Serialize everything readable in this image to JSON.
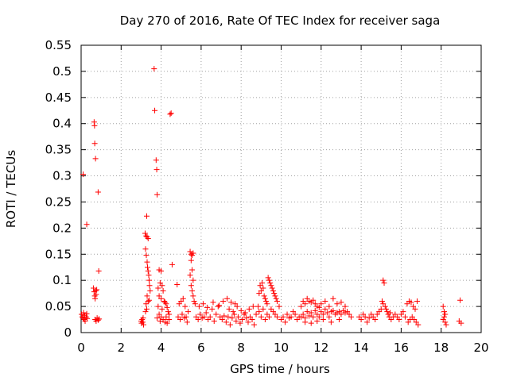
{
  "chart_data": {
    "type": "scatter",
    "title": "Day 270 of 2016, Rate Of TEC Index for receiver saga",
    "xlabel": "GPS time / hours",
    "ylabel": "ROTI / TECUs",
    "xlim": [
      0,
      20
    ],
    "ylim": [
      0,
      0.55
    ],
    "grid": true,
    "xticks": [
      "0",
      "2",
      "4",
      "6",
      "8",
      "10",
      "12",
      "14",
      "16",
      "18",
      "20"
    ],
    "yticks": [
      "0",
      "0.05",
      "0.1",
      "0.15",
      "0.2",
      "0.25",
      "0.3",
      "0.35",
      "0.4",
      "0.45",
      "0.5",
      "0.55"
    ],
    "marker": "plus",
    "color": "#ff0000",
    "series": [
      {
        "name": "ROTI",
        "points": [
          [
            0.02,
            0.035
          ],
          [
            0.05,
            0.03
          ],
          [
            0.1,
            0.028
          ],
          [
            0.12,
            0.038
          ],
          [
            0.15,
            0.025
          ],
          [
            0.18,
            0.033
          ],
          [
            0.2,
            0.022
          ],
          [
            0.25,
            0.03
          ],
          [
            0.28,
            0.036
          ],
          [
            0.3,
            0.027
          ],
          [
            0.1,
            0.303
          ],
          [
            0.28,
            0.207
          ],
          [
            0.65,
            0.403
          ],
          [
            0.67,
            0.396
          ],
          [
            0.68,
            0.362
          ],
          [
            0.72,
            0.333
          ],
          [
            0.85,
            0.269
          ],
          [
            0.88,
            0.118
          ],
          [
            0.62,
            0.085
          ],
          [
            0.65,
            0.078
          ],
          [
            0.68,
            0.07
          ],
          [
            0.7,
            0.065
          ],
          [
            0.73,
            0.08
          ],
          [
            0.75,
            0.073
          ],
          [
            0.78,
            0.082
          ],
          [
            0.7,
            0.025
          ],
          [
            0.75,
            0.022
          ],
          [
            0.8,
            0.028
          ],
          [
            0.85,
            0.024
          ],
          [
            0.9,
            0.026
          ],
          [
            3.0,
            0.022
          ],
          [
            3.02,
            0.018
          ],
          [
            3.05,
            0.025
          ],
          [
            3.08,
            0.02
          ],
          [
            3.1,
            0.028
          ],
          [
            3.12,
            0.015
          ],
          [
            3.2,
            0.19
          ],
          [
            3.25,
            0.185
          ],
          [
            3.3,
            0.183
          ],
          [
            3.35,
            0.18
          ],
          [
            3.28,
            0.223
          ],
          [
            3.22,
            0.16
          ],
          [
            3.26,
            0.148
          ],
          [
            3.3,
            0.135
          ],
          [
            3.32,
            0.125
          ],
          [
            3.35,
            0.118
          ],
          [
            3.38,
            0.11
          ],
          [
            3.4,
            0.1
          ],
          [
            3.42,
            0.09
          ],
          [
            3.45,
            0.08
          ],
          [
            3.3,
            0.07
          ],
          [
            3.35,
            0.06
          ],
          [
            3.25,
            0.055
          ],
          [
            3.4,
            0.062
          ],
          [
            3.28,
            0.045
          ],
          [
            3.22,
            0.04
          ],
          [
            3.65,
            0.505
          ],
          [
            3.68,
            0.425
          ],
          [
            3.75,
            0.33
          ],
          [
            3.78,
            0.312
          ],
          [
            3.8,
            0.264
          ],
          [
            3.9,
            0.12
          ],
          [
            4.0,
            0.118
          ],
          [
            3.95,
            0.095
          ],
          [
            4.05,
            0.09
          ],
          [
            3.85,
            0.085
          ],
          [
            4.1,
            0.08
          ],
          [
            3.9,
            0.07
          ],
          [
            4.0,
            0.065
          ],
          [
            4.15,
            0.06
          ],
          [
            4.2,
            0.058
          ],
          [
            4.25,
            0.055
          ],
          [
            3.85,
            0.05
          ],
          [
            4.05,
            0.045
          ],
          [
            4.3,
            0.048
          ],
          [
            4.35,
            0.04
          ],
          [
            3.9,
            0.035
          ],
          [
            4.0,
            0.03
          ],
          [
            4.1,
            0.025
          ],
          [
            4.2,
            0.02
          ],
          [
            4.3,
            0.018
          ],
          [
            3.8,
            0.028
          ],
          [
            3.95,
            0.022
          ],
          [
            4.25,
            0.03
          ],
          [
            4.4,
            0.035
          ],
          [
            4.4,
            0.025
          ],
          [
            4.45,
            0.418
          ],
          [
            4.5,
            0.42
          ],
          [
            4.55,
            0.13
          ],
          [
            4.8,
            0.092
          ],
          [
            4.9,
            0.055
          ],
          [
            5.0,
            0.06
          ],
          [
            5.1,
            0.065
          ],
          [
            5.2,
            0.05
          ],
          [
            4.85,
            0.03
          ],
          [
            4.95,
            0.025
          ],
          [
            5.05,
            0.035
          ],
          [
            5.15,
            0.028
          ],
          [
            5.25,
            0.03
          ],
          [
            5.3,
            0.02
          ],
          [
            5.35,
            0.04
          ],
          [
            5.45,
            0.155
          ],
          [
            5.5,
            0.15
          ],
          [
            5.55,
            0.148
          ],
          [
            5.6,
            0.152
          ],
          [
            5.5,
            0.138
          ],
          [
            5.55,
            0.12
          ],
          [
            5.45,
            0.11
          ],
          [
            5.6,
            0.1
          ],
          [
            5.5,
            0.09
          ],
          [
            5.55,
            0.08
          ],
          [
            5.6,
            0.07
          ],
          [
            5.65,
            0.06
          ],
          [
            5.7,
            0.055
          ],
          [
            5.75,
            0.03
          ],
          [
            5.85,
            0.025
          ],
          [
            5.95,
            0.035
          ],
          [
            6.05,
            0.028
          ],
          [
            6.15,
            0.03
          ],
          [
            6.25,
            0.038
          ],
          [
            6.35,
            0.025
          ],
          [
            6.45,
            0.03
          ],
          [
            6.55,
            0.045
          ],
          [
            6.65,
            0.022
          ],
          [
            6.75,
            0.035
          ],
          [
            6.85,
            0.05
          ],
          [
            6.95,
            0.03
          ],
          [
            7.05,
            0.025
          ],
          [
            7.15,
            0.032
          ],
          [
            5.9,
            0.05
          ],
          [
            6.1,
            0.055
          ],
          [
            6.3,
            0.048
          ],
          [
            6.6,
            0.058
          ],
          [
            6.9,
            0.052
          ],
          [
            7.1,
            0.06
          ],
          [
            7.3,
            0.065
          ],
          [
            7.5,
            0.058
          ],
          [
            7.7,
            0.055
          ],
          [
            7.25,
            0.02
          ],
          [
            7.35,
            0.03
          ],
          [
            7.45,
            0.015
          ],
          [
            7.55,
            0.028
          ],
          [
            7.65,
            0.035
          ],
          [
            7.75,
            0.022
          ],
          [
            7.85,
            0.03
          ],
          [
            7.95,
            0.018
          ],
          [
            8.05,
            0.025
          ],
          [
            8.15,
            0.035
          ],
          [
            8.25,
            0.028
          ],
          [
            8.35,
            0.02
          ],
          [
            8.45,
            0.03
          ],
          [
            8.55,
            0.025
          ],
          [
            8.65,
            0.015
          ],
          [
            7.4,
            0.045
          ],
          [
            7.6,
            0.04
          ],
          [
            7.8,
            0.05
          ],
          [
            8.0,
            0.042
          ],
          [
            8.2,
            0.038
          ],
          [
            8.4,
            0.045
          ],
          [
            8.6,
            0.05
          ],
          [
            8.75,
            0.035
          ],
          [
            8.85,
            0.05
          ],
          [
            8.9,
            0.075
          ],
          [
            8.95,
            0.09
          ],
          [
            9.0,
            0.08
          ],
          [
            9.05,
            0.095
          ],
          [
            9.1,
            0.085
          ],
          [
            9.15,
            0.07
          ],
          [
            9.2,
            0.065
          ],
          [
            9.25,
            0.06
          ],
          [
            9.3,
            0.055
          ],
          [
            9.35,
            0.105
          ],
          [
            9.4,
            0.1
          ],
          [
            9.45,
            0.095
          ],
          [
            9.5,
            0.09
          ],
          [
            9.55,
            0.085
          ],
          [
            9.6,
            0.08
          ],
          [
            9.65,
            0.075
          ],
          [
            9.7,
            0.07
          ],
          [
            9.75,
            0.065
          ],
          [
            9.8,
            0.06
          ],
          [
            8.9,
            0.04
          ],
          [
            9.0,
            0.03
          ],
          [
            9.1,
            0.045
          ],
          [
            9.2,
            0.025
          ],
          [
            9.3,
            0.035
          ],
          [
            9.4,
            0.03
          ],
          [
            9.5,
            0.045
          ],
          [
            9.6,
            0.04
          ],
          [
            9.7,
            0.035
          ],
          [
            9.8,
            0.03
          ],
          [
            9.9,
            0.05
          ],
          [
            10.0,
            0.025
          ],
          [
            10.1,
            0.03
          ],
          [
            10.2,
            0.02
          ],
          [
            10.3,
            0.035
          ],
          [
            10.4,
            0.028
          ],
          [
            10.5,
            0.03
          ],
          [
            10.6,
            0.04
          ],
          [
            10.7,
            0.035
          ],
          [
            10.8,
            0.025
          ],
          [
            10.9,
            0.03
          ],
          [
            11.0,
            0.05
          ],
          [
            11.1,
            0.06
          ],
          [
            11.2,
            0.055
          ],
          [
            11.3,
            0.065
          ],
          [
            11.4,
            0.06
          ],
          [
            11.5,
            0.058
          ],
          [
            11.6,
            0.062
          ],
          [
            11.7,
            0.055
          ],
          [
            11.8,
            0.05
          ],
          [
            11.9,
            0.048
          ],
          [
            11.0,
            0.03
          ],
          [
            11.1,
            0.035
          ],
          [
            11.2,
            0.028
          ],
          [
            11.3,
            0.04
          ],
          [
            11.4,
            0.032
          ],
          [
            11.5,
            0.038
          ],
          [
            11.6,
            0.03
          ],
          [
            11.7,
            0.042
          ],
          [
            11.8,
            0.035
          ],
          [
            11.9,
            0.03
          ],
          [
            12.0,
            0.04
          ],
          [
            12.1,
            0.035
          ],
          [
            12.2,
            0.045
          ],
          [
            12.3,
            0.038
          ],
          [
            12.4,
            0.03
          ],
          [
            12.5,
            0.04
          ],
          [
            12.6,
            0.042
          ],
          [
            12.7,
            0.035
          ],
          [
            12.8,
            0.038
          ],
          [
            12.9,
            0.04
          ],
          [
            13.0,
            0.035
          ],
          [
            13.1,
            0.042
          ],
          [
            13.2,
            0.038
          ],
          [
            13.3,
            0.04
          ],
          [
            13.4,
            0.035
          ],
          [
            13.5,
            0.03
          ],
          [
            12.0,
            0.055
          ],
          [
            12.2,
            0.06
          ],
          [
            12.4,
            0.05
          ],
          [
            12.6,
            0.065
          ],
          [
            12.8,
            0.055
          ],
          [
            13.0,
            0.058
          ],
          [
            13.2,
            0.05
          ],
          [
            11.2,
            0.02
          ],
          [
            11.5,
            0.018
          ],
          [
            11.8,
            0.022
          ],
          [
            12.1,
            0.025
          ],
          [
            12.5,
            0.02
          ],
          [
            12.9,
            0.025
          ],
          [
            13.9,
            0.03
          ],
          [
            14.0,
            0.025
          ],
          [
            14.1,
            0.035
          ],
          [
            14.2,
            0.03
          ],
          [
            14.3,
            0.02
          ],
          [
            14.4,
            0.028
          ],
          [
            14.5,
            0.035
          ],
          [
            14.6,
            0.03
          ],
          [
            14.7,
            0.025
          ],
          [
            14.8,
            0.035
          ],
          [
            14.9,
            0.04
          ],
          [
            15.0,
            0.045
          ],
          [
            15.1,
            0.1
          ],
          [
            15.15,
            0.095
          ],
          [
            15.05,
            0.06
          ],
          [
            15.1,
            0.055
          ],
          [
            15.2,
            0.05
          ],
          [
            15.25,
            0.045
          ],
          [
            15.3,
            0.04
          ],
          [
            15.35,
            0.035
          ],
          [
            15.4,
            0.03
          ],
          [
            15.45,
            0.038
          ],
          [
            15.5,
            0.025
          ],
          [
            15.6,
            0.03
          ],
          [
            15.7,
            0.035
          ],
          [
            15.8,
            0.03
          ],
          [
            15.9,
            0.025
          ],
          [
            16.0,
            0.035
          ],
          [
            16.1,
            0.04
          ],
          [
            16.2,
            0.03
          ],
          [
            16.3,
            0.055
          ],
          [
            16.4,
            0.06
          ],
          [
            16.5,
            0.058
          ],
          [
            16.6,
            0.05
          ],
          [
            16.7,
            0.045
          ],
          [
            16.8,
            0.06
          ],
          [
            16.35,
            0.02
          ],
          [
            16.45,
            0.025
          ],
          [
            16.55,
            0.03
          ],
          [
            16.65,
            0.025
          ],
          [
            16.75,
            0.02
          ],
          [
            16.85,
            0.015
          ],
          [
            18.1,
            0.05
          ],
          [
            18.15,
            0.04
          ],
          [
            18.2,
            0.035
          ],
          [
            18.1,
            0.025
          ],
          [
            18.2,
            0.02
          ],
          [
            18.25,
            0.015
          ],
          [
            18.15,
            0.03
          ],
          [
            18.95,
            0.062
          ],
          [
            18.9,
            0.022
          ],
          [
            19.0,
            0.018
          ]
        ]
      }
    ]
  }
}
